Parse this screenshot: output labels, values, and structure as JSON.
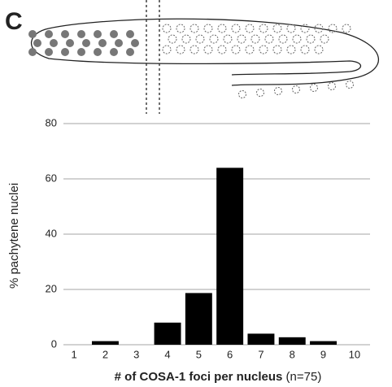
{
  "chart_data": {
    "type": "bar",
    "panel_label": "C",
    "xlabel": "# of COSA-1 foci per nucleus",
    "xlabel_note": "(n=75)",
    "ylabel": "% pachytene nuclei",
    "categories": [
      "1",
      "2",
      "3",
      "4",
      "5",
      "6",
      "7",
      "8",
      "9",
      "10"
    ],
    "values": [
      0,
      1.3,
      0,
      8,
      18.7,
      64,
      4,
      2.7,
      1.3,
      0
    ],
    "color": "#000000",
    "ylim": [
      0,
      80
    ],
    "yticks": [
      0,
      20,
      40,
      60,
      80
    ],
    "grid": true
  }
}
